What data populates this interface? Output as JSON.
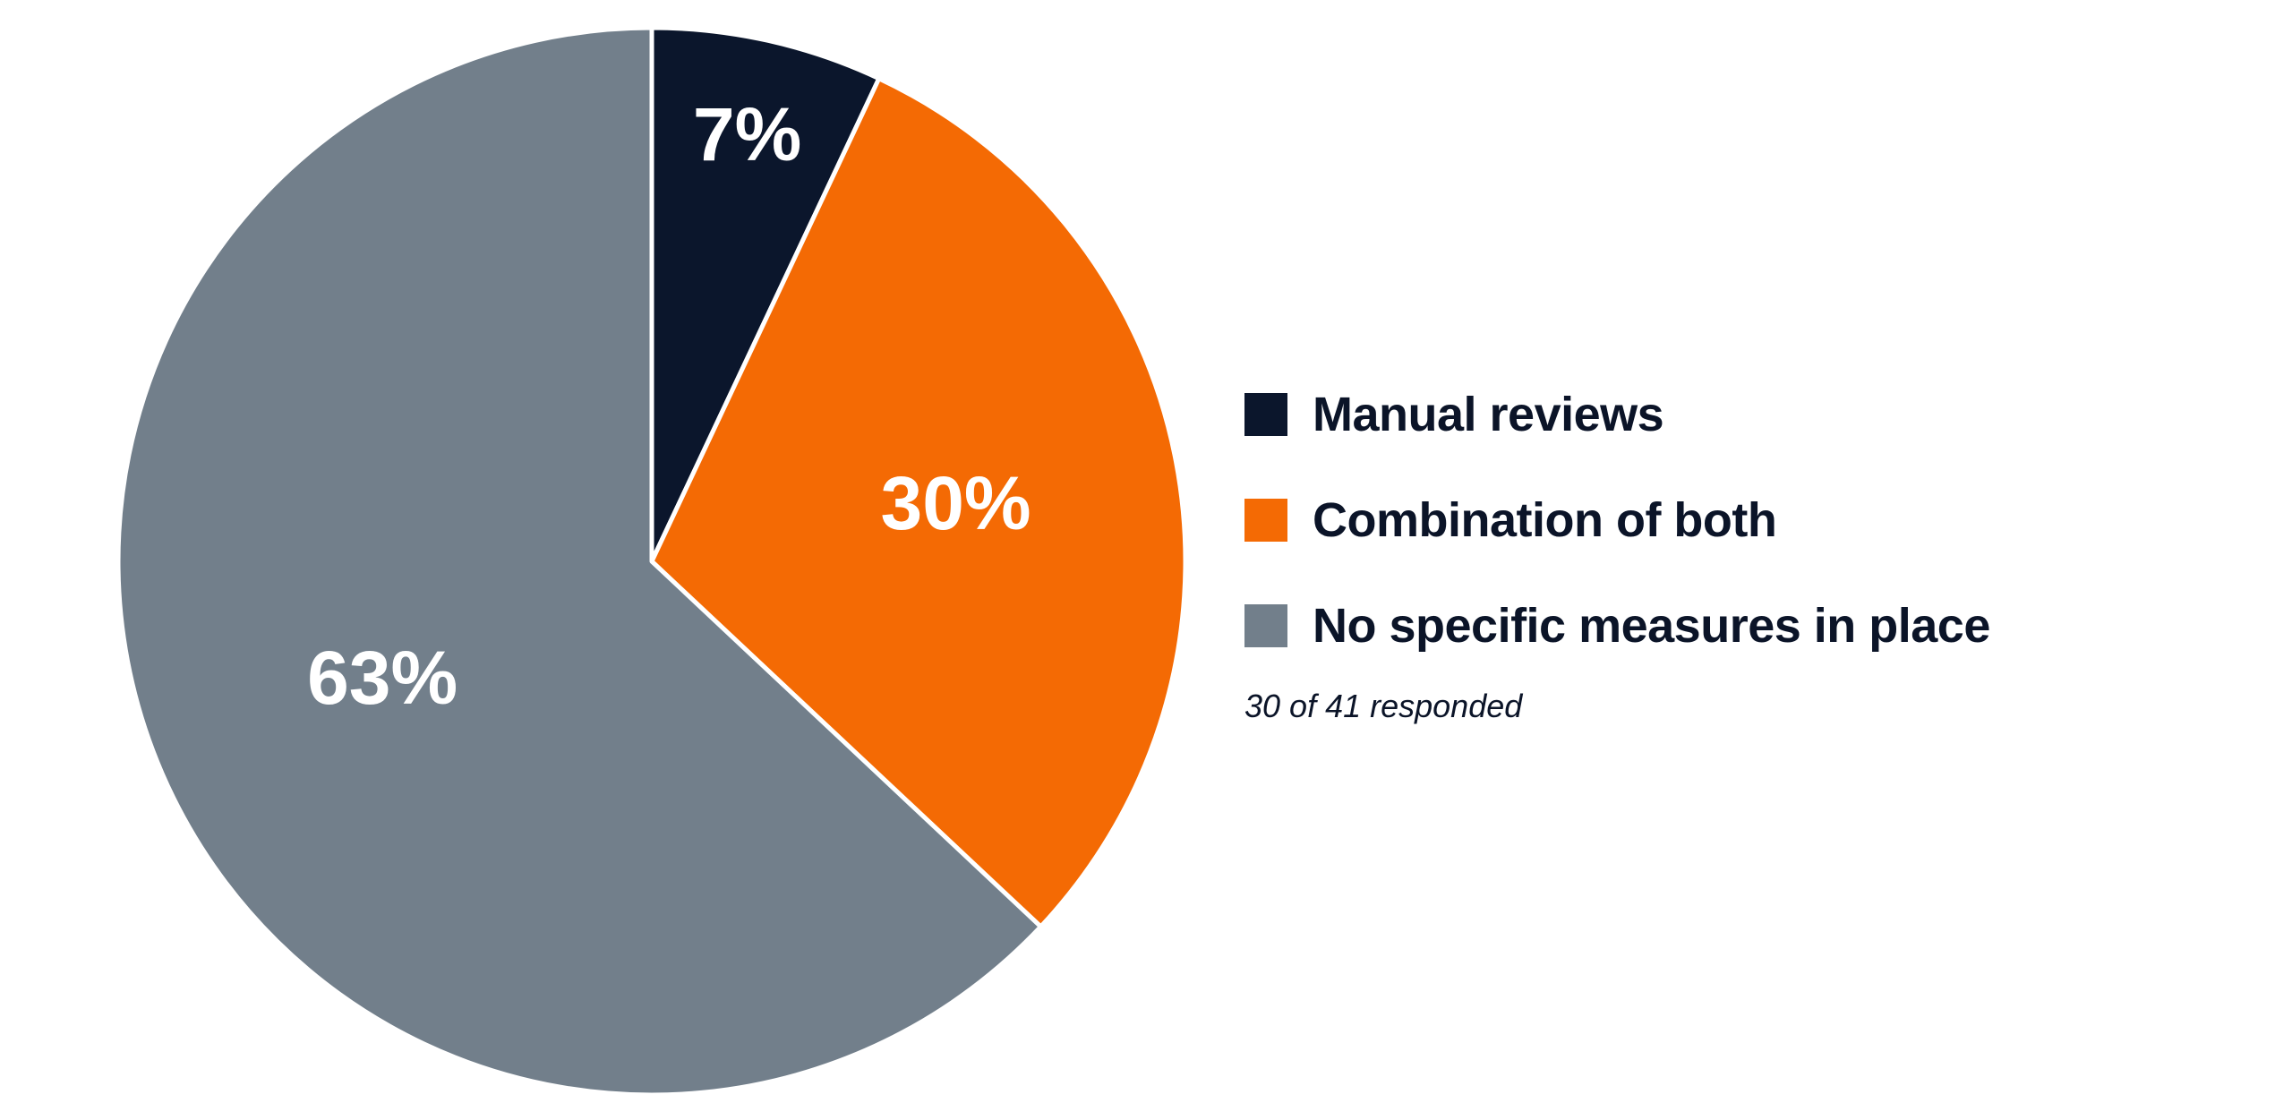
{
  "chart_data": {
    "type": "pie",
    "categories": [
      "Manual reviews",
      "Combination of both",
      "No specific measures in place"
    ],
    "values": [
      7,
      30,
      63
    ],
    "data_labels": [
      "7%",
      "30%",
      "63%"
    ],
    "colors": [
      "#0b162c",
      "#f46a04",
      "#727f8b"
    ],
    "legend_placement": "right",
    "annotation": "30 of 41 responded"
  }
}
